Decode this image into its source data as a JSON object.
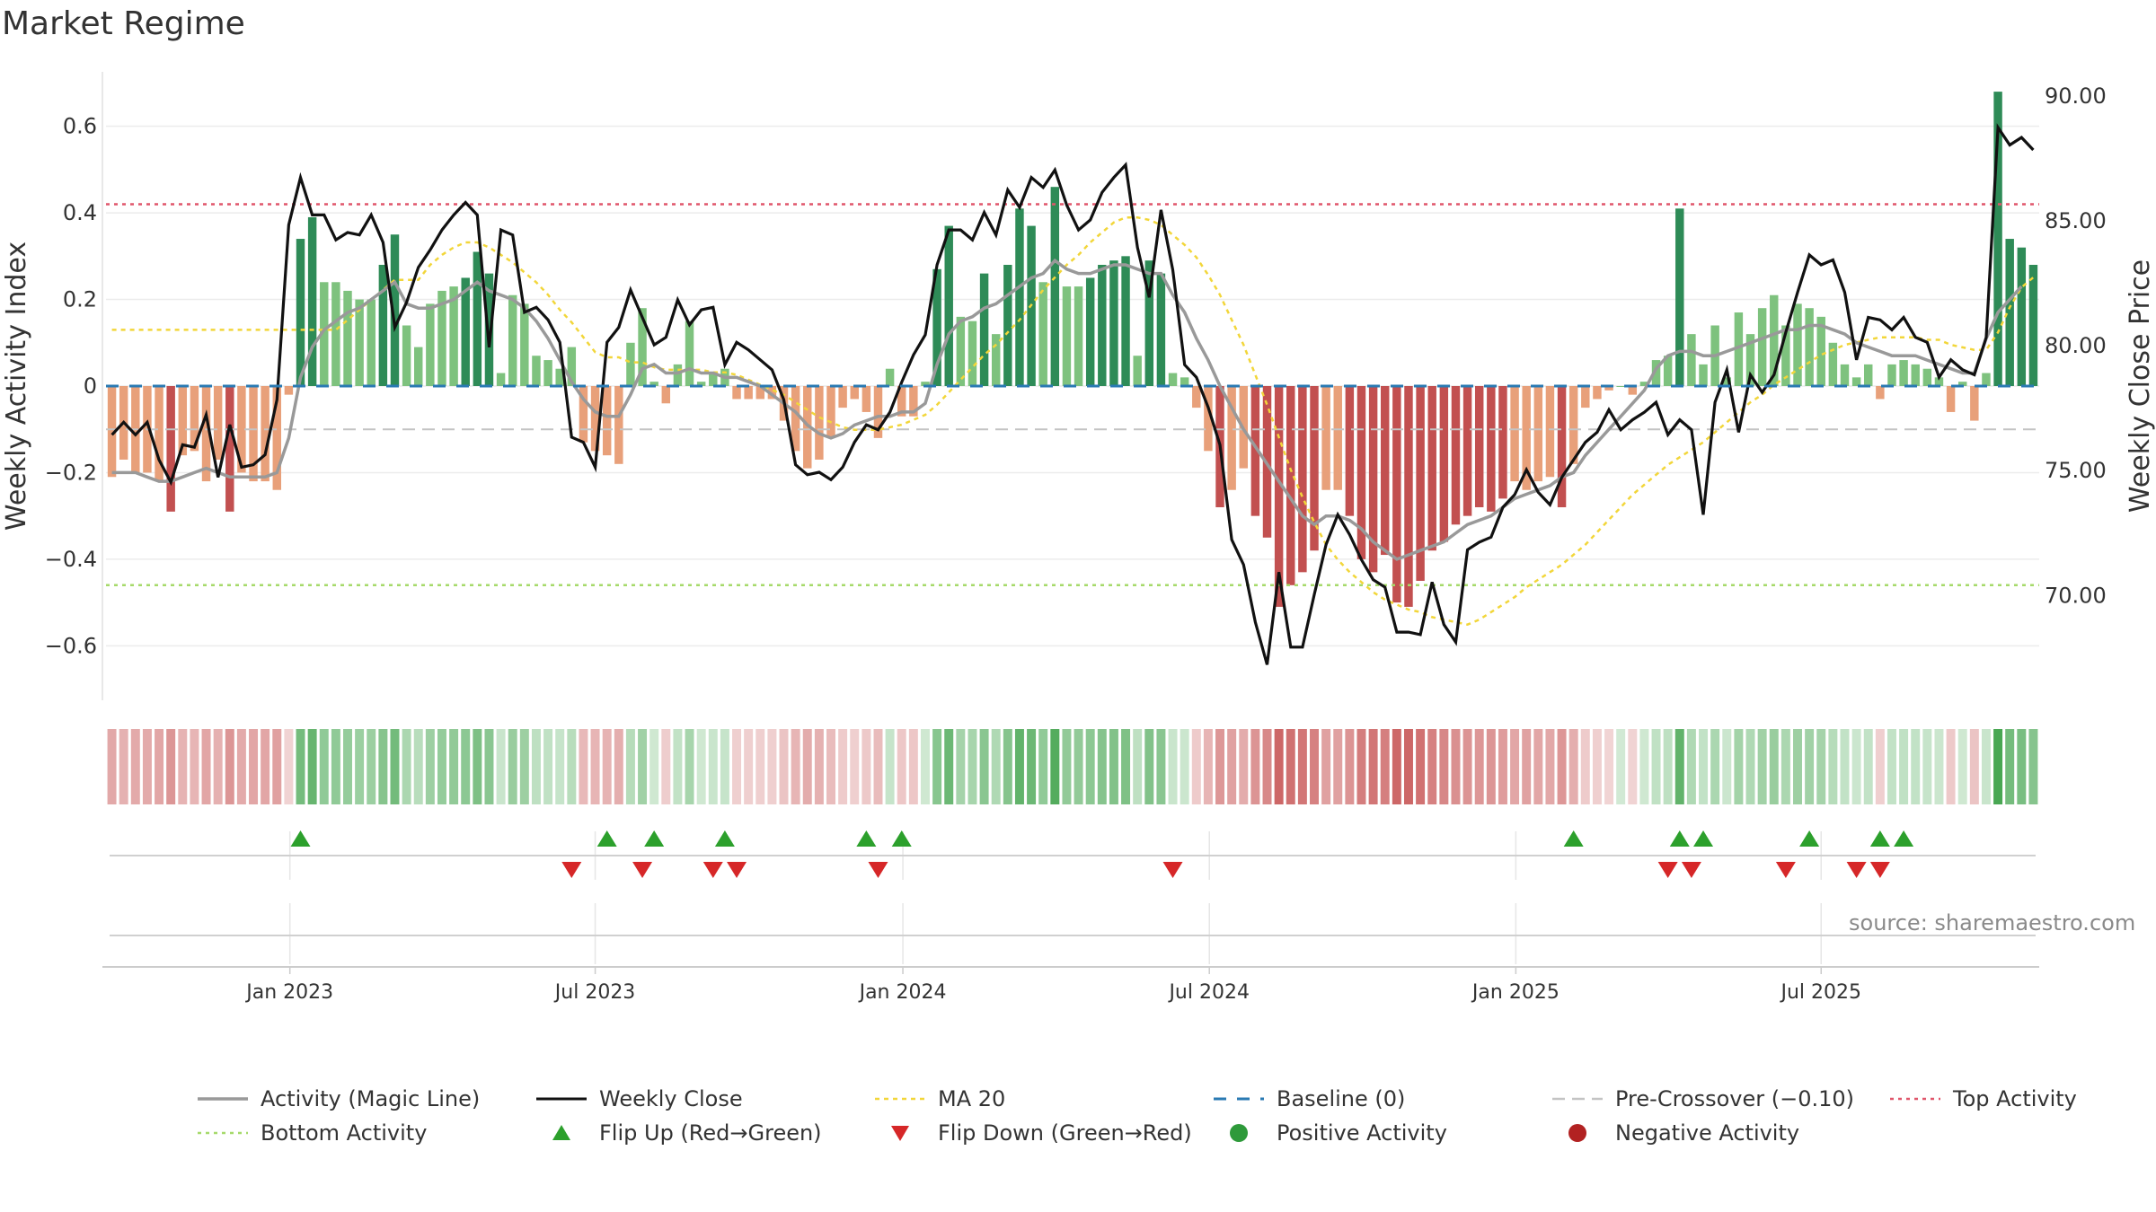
{
  "title": "Market Regime",
  "source": "source: sharemaestro.com",
  "colors": {
    "activity_line": "#999999",
    "close_line": "#111111",
    "ma20": "#f2d63a",
    "baseline": "#2a7ab3",
    "precross": "#c4c4c4",
    "top": "#e0566b",
    "bottom": "#a6d96a",
    "up_marker": "#2ca02c",
    "down_marker": "#d62728",
    "strong_green": "#2e8b57",
    "light_green": "#7ec27e",
    "strong_red": "#c25050",
    "light_red": "#e8a07a",
    "pos_dot": "#2e9a3a",
    "neg_dot": "#b22222"
  },
  "legend": [
    {
      "key": "activity",
      "label": "Activity (Magic Line)"
    },
    {
      "key": "close",
      "label": "Weekly Close"
    },
    {
      "key": "ma20",
      "label": "MA 20"
    },
    {
      "key": "baseline",
      "label": "Baseline (0)"
    },
    {
      "key": "precross",
      "label": "Pre-Crossover (−0.10)"
    },
    {
      "key": "top",
      "label": "Top Activity"
    },
    {
      "key": "bottom",
      "label": "Bottom Activity"
    },
    {
      "key": "flipup",
      "label": "Flip Up (Red→Green)"
    },
    {
      "key": "flipdown",
      "label": "Flip Down (Green→Red)"
    },
    {
      "key": "posact",
      "label": "Positive Activity"
    },
    {
      "key": "negact",
      "label": "Negative Activity"
    }
  ],
  "chart_data": {
    "type": "bar",
    "x_tick_labels": [
      "Jan 2023",
      "Jul 2023",
      "Jan 2024",
      "Jul 2024",
      "Jan 2025",
      "Jul 2025"
    ],
    "ylabel_left": "Weekly Activity Index",
    "ylabel_right": "Weekly Close Price",
    "yticks_left": [
      "0.6",
      "0.4",
      "0.2",
      "0",
      "−0.2",
      "−0.4",
      "−0.6"
    ],
    "yticks_right": [
      "90.00",
      "85.00",
      "80.00",
      "75.00",
      "70.00"
    ],
    "ylim_left": [
      -0.73,
      0.73
    ],
    "ylim_right": [
      65.7,
      91.0
    ],
    "reference_lines": {
      "baseline": 0,
      "pre_crossover": -0.1,
      "top_activity": 0.42,
      "bottom_activity": -0.46
    },
    "activity_index": [
      -0.21,
      -0.17,
      -0.2,
      -0.2,
      -0.22,
      -0.29,
      -0.16,
      -0.15,
      -0.22,
      -0.17,
      -0.29,
      -0.2,
      -0.22,
      -0.22,
      -0.24,
      -0.02,
      0.34,
      0.39,
      0.24,
      0.24,
      0.22,
      0.2,
      0.2,
      0.28,
      0.35,
      0.14,
      0.09,
      0.19,
      0.22,
      0.23,
      0.25,
      0.31,
      0.26,
      0.03,
      0.21,
      0.19,
      0.07,
      0.06,
      0.04,
      0.09,
      -0.13,
      -0.15,
      -0.16,
      -0.18,
      0.1,
      0.18,
      0.01,
      -0.04,
      0.05,
      0.15,
      0.01,
      0.03,
      0.04,
      -0.03,
      -0.03,
      -0.03,
      -0.03,
      -0.08,
      -0.15,
      -0.19,
      -0.17,
      -0.12,
      -0.05,
      -0.03,
      -0.06,
      -0.12,
      0.04,
      -0.07,
      -0.07,
      0.01,
      0.27,
      0.37,
      0.16,
      0.15,
      0.26,
      0.12,
      0.28,
      0.41,
      0.37,
      0.24,
      0.46,
      0.23,
      0.23,
      0.25,
      0.28,
      0.29,
      0.3,
      0.07,
      0.29,
      0.26,
      0.03,
      0.02,
      -0.05,
      -0.15,
      -0.28,
      -0.24,
      -0.19,
      -0.3,
      -0.35,
      -0.51,
      -0.46,
      -0.43,
      -0.38,
      -0.24,
      -0.24,
      -0.3,
      -0.4,
      -0.43,
      -0.39,
      -0.5,
      -0.51,
      -0.45,
      -0.38,
      -0.36,
      -0.32,
      -0.3,
      -0.28,
      -0.29,
      -0.26,
      -0.22,
      -0.24,
      -0.22,
      -0.21,
      -0.28,
      -0.18,
      -0.05,
      -0.03,
      -0.01,
      0,
      -0.02,
      0.01,
      0.06,
      0.07,
      0.41,
      0.12,
      0.05,
      0.14,
      0.02,
      0.17,
      0.12,
      0.18,
      0.21,
      0.14,
      0.19,
      0.18,
      0.16,
      0.1,
      0.05,
      0.02,
      0.05,
      -0.03,
      0.05,
      0.06,
      0.05,
      0.04,
      0.02,
      -0.06,
      0.01,
      -0.08,
      0.03,
      0.68,
      0.34,
      0.32,
      0.28
    ],
    "weekly_close": [
      76.4,
      76.9,
      76.4,
      76.9,
      75.4,
      74.5,
      76.0,
      75.9,
      77.2,
      74.7,
      76.8,
      75.1,
      75.2,
      75.6,
      77.8,
      84.8,
      86.7,
      85.2,
      85.2,
      84.2,
      84.5,
      84.4,
      85.2,
      84.1,
      80.7,
      81.7,
      83.1,
      83.8,
      84.6,
      85.2,
      85.7,
      85.2,
      79.9,
      84.6,
      84.4,
      81.3,
      81.5,
      81.0,
      80.1,
      76.3,
      76.1,
      75.1,
      80.1,
      80.7,
      82.2,
      81.1,
      80.0,
      80.3,
      81.8,
      80.8,
      81.4,
      81.5,
      79.2,
      80.1,
      79.8,
      79.4,
      79.0,
      77.8,
      75.2,
      74.8,
      74.9,
      74.6,
      75.1,
      76.1,
      76.8,
      76.6,
      77.3,
      78.5,
      79.6,
      80.4,
      83.2,
      84.6,
      84.6,
      84.2,
      85.3,
      84.4,
      86.2,
      85.5,
      86.7,
      86.3,
      87.0,
      85.6,
      84.6,
      85.0,
      86.1,
      86.7,
      87.2,
      83.9,
      81.9,
      85.4,
      83.0,
      79.2,
      78.7,
      77.5,
      76.0,
      72.2,
      71.2,
      68.9,
      67.2,
      70.9,
      67.9,
      67.9,
      70.0,
      72.0,
      73.2,
      72.4,
      71.4,
      70.6,
      70.3,
      68.5,
      68.5,
      68.4,
      70.5,
      68.8,
      68.1,
      71.8,
      72.1,
      72.3,
      73.5,
      74.0,
      75.0,
      74.1,
      73.6,
      74.7,
      75.4,
      76.1,
      76.5,
      77.4,
      76.6,
      77.0,
      77.3,
      77.7,
      76.4,
      77.0,
      76.6,
      73.2,
      77.7,
      79.0,
      76.5,
      78.8,
      78.1,
      78.8,
      80.5,
      82.1,
      83.6,
      83.2,
      83.4,
      82.1,
      79.4,
      81.1,
      81.0,
      80.6,
      81.1,
      80.3,
      80.1,
      78.7,
      79.4,
      79.0,
      78.8,
      80.3,
      88.7,
      88.0,
      88.3,
      87.8
    ],
    "activity_line": [
      -0.2,
      -0.2,
      -0.2,
      -0.21,
      -0.22,
      -0.22,
      -0.21,
      -0.2,
      -0.19,
      -0.2,
      -0.21,
      -0.21,
      -0.21,
      -0.21,
      -0.2,
      -0.12,
      0.02,
      0.09,
      0.13,
      0.15,
      0.17,
      0.18,
      0.2,
      0.22,
      0.24,
      0.19,
      0.18,
      0.18,
      0.19,
      0.2,
      0.22,
      0.24,
      0.22,
      0.21,
      0.2,
      0.18,
      0.15,
      0.11,
      0.06,
      0.01,
      -0.03,
      -0.06,
      -0.07,
      -0.07,
      -0.02,
      0.04,
      0.05,
      0.03,
      0.03,
      0.04,
      0.03,
      0.03,
      0.02,
      0.02,
      0.01,
      0,
      -0.02,
      -0.04,
      -0.06,
      -0.09,
      -0.11,
      -0.12,
      -0.11,
      -0.09,
      -0.08,
      -0.07,
      -0.07,
      -0.06,
      -0.06,
      -0.04,
      0.05,
      0.12,
      0.15,
      0.16,
      0.18,
      0.19,
      0.21,
      0.23,
      0.25,
      0.26,
      0.29,
      0.27,
      0.26,
      0.26,
      0.27,
      0.28,
      0.28,
      0.27,
      0.26,
      0.26,
      0.21,
      0.17,
      0.11,
      0.06,
      0,
      -0.05,
      -0.1,
      -0.14,
      -0.18,
      -0.22,
      -0.26,
      -0.3,
      -0.32,
      -0.3,
      -0.3,
      -0.31,
      -0.33,
      -0.36,
      -0.38,
      -0.4,
      -0.39,
      -0.38,
      -0.37,
      -0.36,
      -0.34,
      -0.32,
      -0.31,
      -0.3,
      -0.28,
      -0.26,
      -0.25,
      -0.24,
      -0.23,
      -0.21,
      -0.2,
      -0.16,
      -0.13,
      -0.1,
      -0.07,
      -0.04,
      -0.01,
      0.04,
      0.07,
      0.08,
      0.08,
      0.07,
      0.07,
      0.08,
      0.09,
      0.1,
      0.11,
      0.12,
      0.13,
      0.13,
      0.14,
      0.14,
      0.13,
      0.12,
      0.1,
      0.09,
      0.08,
      0.07,
      0.07,
      0.07,
      0.06,
      0.05,
      0.04,
      0.03,
      0.03,
      0.11,
      0.17,
      0.2,
      0.23
    ],
    "ma20": [
      80.6,
      80.6,
      80.6,
      80.6,
      80.6,
      80.6,
      80.6,
      80.6,
      80.6,
      80.6,
      80.6,
      80.6,
      80.6,
      80.6,
      80.6,
      80.6,
      80.6,
      80.6,
      80.6,
      80.6,
      81.0,
      81.4,
      81.8,
      82.2,
      82.6,
      82.6,
      82.6,
      83.2,
      83.6,
      83.9,
      84.1,
      84.1,
      83.9,
      83.6,
      83.3,
      82.9,
      82.5,
      82.0,
      81.4,
      80.9,
      80.3,
      79.7,
      79.5,
      79.5,
      79.3,
      79.3,
      79.1,
      79.0,
      79.0,
      79.0,
      79.0,
      78.9,
      78.9,
      78.8,
      78.6,
      78.4,
      78.2,
      78.0,
      77.7,
      77.4,
      77.1,
      76.9,
      76.7,
      76.6,
      76.6,
      76.6,
      76.7,
      76.8,
      77.0,
      77.2,
      77.6,
      78.1,
      78.6,
      79.1,
      79.6,
      80.0,
      80.5,
      81.0,
      81.6,
      82.2,
      82.7,
      83.2,
      83.6,
      84.1,
      84.5,
      84.9,
      85.1,
      85.1,
      85.0,
      84.8,
      84.4,
      84.0,
      83.5,
      82.8,
      82.0,
      81.0,
      80.0,
      78.8,
      77.6,
      76.3,
      75.0,
      73.9,
      72.9,
      72.0,
      71.4,
      70.9,
      70.5,
      70.1,
      69.8,
      69.6,
      69.4,
      69.3,
      69.1,
      69.0,
      68.9,
      68.8,
      69.0,
      69.3,
      69.6,
      69.9,
      70.3,
      70.6,
      70.9,
      71.2,
      71.6,
      72.0,
      72.5,
      73.0,
      73.5,
      74.0,
      74.4,
      74.8,
      75.2,
      75.5,
      75.8,
      76.1,
      76.5,
      76.9,
      77.3,
      77.7,
      78.0,
      78.4,
      78.7,
      79.0,
      79.3,
      79.6,
      79.8,
      80.0,
      80.1,
      80.2,
      80.3,
      80.3,
      80.3,
      80.3,
      80.2,
      80.2,
      80.0,
      79.9,
      79.8,
      79.8,
      80.5,
      81.5,
      82.3,
      82.7
    ],
    "flip_up_weeks": [
      16,
      42,
      46,
      52,
      64,
      67,
      124,
      133,
      135,
      144,
      150,
      152
    ],
    "flip_down_weeks": [
      39,
      45,
      51,
      53,
      65,
      90,
      132,
      134,
      142,
      148,
      150
    ]
  }
}
